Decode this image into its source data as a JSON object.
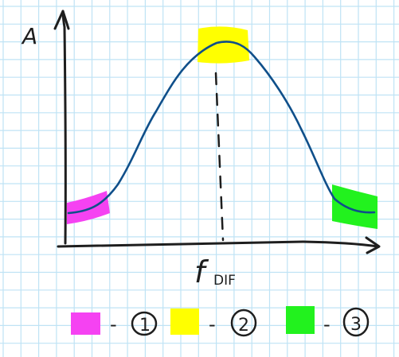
{
  "diagram": {
    "colors": {
      "grid": "#bfe3f5",
      "ink": "#1e1e1e",
      "curve": "#0f4f8a",
      "highlight_1": "#f542f2",
      "highlight_2": "#ffff00",
      "highlight_3": "#22f21e"
    },
    "y_axis_label": "A",
    "x_axis_label": "f",
    "x_axis_subscript": "DIF",
    "legend": [
      {
        "color": "#f542f2",
        "dash": "-",
        "label": "1"
      },
      {
        "color": "#ffff00",
        "dash": "-",
        "label": "2"
      },
      {
        "color": "#22f21e",
        "dash": "-",
        "label": "3"
      }
    ]
  }
}
